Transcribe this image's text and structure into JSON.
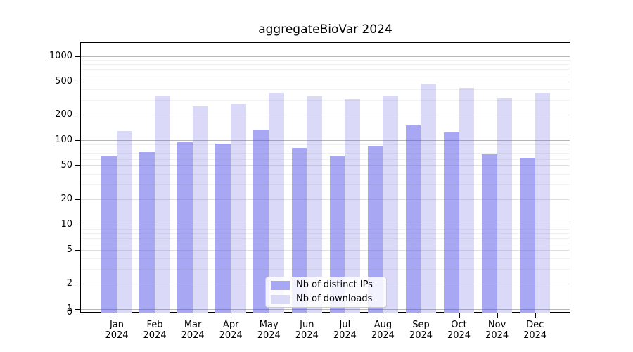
{
  "chart_data": {
    "type": "bar",
    "title": "aggregateBioVar 2024",
    "categories": [
      "Jan",
      "Feb",
      "Mar",
      "Apr",
      "May",
      "Jun",
      "Jul",
      "Aug",
      "Sep",
      "Oct",
      "Nov",
      "Dec"
    ],
    "x_year_line": "2024",
    "series": [
      {
        "name": "Nb of distinct IPs",
        "color": "#a7a7f4",
        "values": [
          65,
          72,
          95,
          92,
          135,
          82,
          65,
          85,
          150,
          125,
          68,
          62
        ]
      },
      {
        "name": "Nb of downloads",
        "color": "#dadaf8",
        "values": [
          130,
          335,
          255,
          270,
          365,
          330,
          305,
          335,
          470,
          415,
          320,
          365
        ]
      }
    ],
    "yscale": "log",
    "ylim": [
      0,
      1450
    ],
    "ytick_values": [
      1000,
      500,
      200,
      100,
      50,
      20,
      10,
      5,
      2,
      1,
      0
    ],
    "ytick_labels": [
      "1000",
      "500",
      "200",
      "100",
      "50",
      "20",
      "10",
      "5",
      "2",
      "1",
      "0"
    ],
    "xlabel": "",
    "ylabel": "",
    "grid": true,
    "legend_position": "lower center inside plot"
  }
}
